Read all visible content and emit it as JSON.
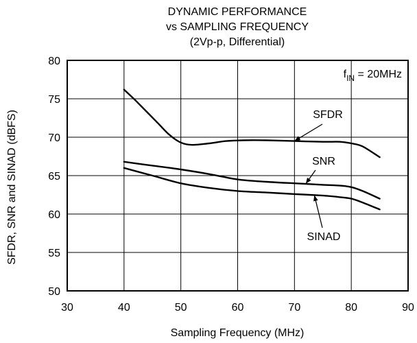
{
  "chart_data": {
    "type": "line",
    "title": [
      "DYNAMIC PERFORMANCE",
      "vs SAMPLING FREQUENCY",
      "(2Vp-p, Differential)"
    ],
    "xlabel": "Sampling Frequency (MHz)",
    "ylabel": "SFDR, SNR and SINAD (dBFS)",
    "xlim": [
      30,
      90
    ],
    "ylim": [
      50,
      80
    ],
    "xticks": [
      30,
      40,
      50,
      60,
      70,
      80,
      90
    ],
    "yticks": [
      50,
      55,
      60,
      65,
      70,
      75,
      80
    ],
    "grid": true,
    "legend": "none (inline labels)",
    "annotation": {
      "base": "f",
      "sub": "IN",
      "rest": " = 20MHz"
    },
    "series": [
      {
        "name": "SFDR",
        "x": [
          40,
          42,
          44,
          46,
          48,
          50,
          52,
          55,
          58,
          61,
          65,
          70,
          75,
          78,
          80,
          82,
          85
        ],
        "y": [
          76.2,
          74.8,
          73.3,
          71.8,
          70.3,
          69.3,
          69.0,
          69.2,
          69.5,
          69.6,
          69.6,
          69.5,
          69.4,
          69.4,
          69.2,
          68.8,
          67.4
        ]
      },
      {
        "name": "SNR",
        "x": [
          40,
          45,
          50,
          55,
          60,
          65,
          70,
          75,
          78,
          80,
          82,
          85
        ],
        "y": [
          66.8,
          66.3,
          65.8,
          65.2,
          64.5,
          64.2,
          64.0,
          63.8,
          63.7,
          63.5,
          63.0,
          62.0
        ]
      },
      {
        "name": "SINAD",
        "x": [
          40,
          45,
          50,
          55,
          60,
          65,
          70,
          75,
          78,
          80,
          82,
          85
        ],
        "y": [
          66.0,
          65.0,
          64.0,
          63.4,
          63.0,
          62.8,
          62.6,
          62.4,
          62.2,
          62.0,
          61.5,
          60.6
        ]
      }
    ]
  }
}
